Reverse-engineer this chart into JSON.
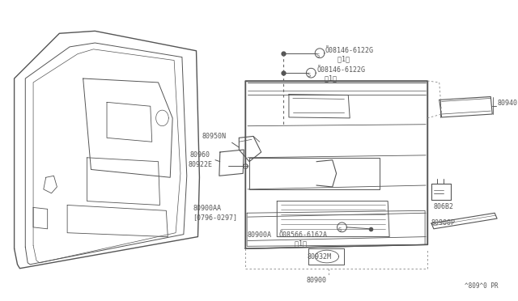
{
  "bg_color": "#ffffff",
  "line_color": "#555555",
  "text_color": "#555555",
  "diagram_code": "^809^0 PR",
  "screw_label_1": "Õ08146-6122G\n   （1）",
  "screw_label_2": "Õ08146-6122G\n  （1）",
  "screw_label_3": "Õ08566-6162A\n    （1）",
  "label_80950N": "80950N",
  "label_80940": "80940",
  "label_80960": "80960",
  "label_80922E": "80922E",
  "label_80900AA": "80900AA\n[0796-0297]",
  "label_80900A": "80900A",
  "label_80932M": "80932M",
  "label_80682": "806B2",
  "label_80900P": "80900P",
  "label_80900": "80900"
}
